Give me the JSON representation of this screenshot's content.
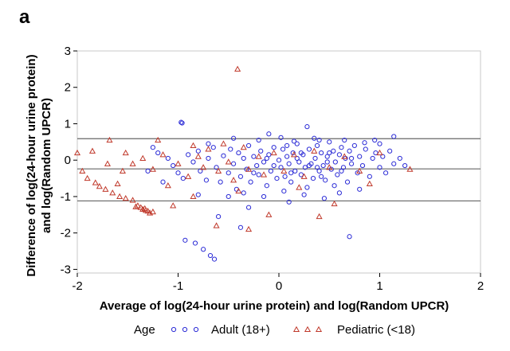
{
  "panel_label": "a",
  "chart_data": {
    "type": "scatter",
    "title": "",
    "xlabel": "Average of log(24-hour urine protein) and log(Random UPCR)",
    "ylabel_line1": "Difference of log(24-hour urine protein)",
    "ylabel_line2": "and log(Random UPCR)",
    "xlim": [
      -2,
      2
    ],
    "ylim": [
      -3.1,
      3.0
    ],
    "xticks": [
      -2,
      -1,
      0,
      1,
      2
    ],
    "yticks": [
      -3,
      -2,
      -1,
      0,
      1,
      2,
      3
    ],
    "xtick_labels": [
      "-2",
      "-1",
      "0",
      "1",
      "2"
    ],
    "ytick_labels": [
      "-3",
      "-2",
      "-1",
      "0",
      "1",
      "2",
      "3"
    ],
    "grid": false,
    "reference_lines": [
      0.59,
      -0.24,
      -1.12
    ],
    "legend": {
      "placement": "bottom",
      "title": "Age",
      "entries": [
        "Adult (18+)",
        "Pediatric (<18)"
      ]
    },
    "colors": {
      "adult": "#2b2bd6",
      "pediatric": "#c0392b",
      "reference_line": "#666666",
      "frame": "#c8c8c8"
    },
    "series": [
      {
        "name": "Adult (18+)",
        "marker": "circle",
        "points": [
          [
            -0.96,
            1.02
          ],
          [
            -0.97,
            1.04
          ],
          [
            0.28,
            0.92
          ],
          [
            1.14,
            0.65
          ],
          [
            -0.93,
            -2.2
          ],
          [
            -0.83,
            -2.28
          ],
          [
            -0.75,
            -2.45
          ],
          [
            -0.68,
            -2.62
          ],
          [
            -0.64,
            -2.72
          ],
          [
            -0.38,
            -1.85
          ],
          [
            0.7,
            -2.1
          ],
          [
            -0.1,
            0.72
          ],
          [
            0.02,
            0.62
          ],
          [
            0.95,
            0.55
          ],
          [
            -1.2,
            0.2
          ],
          [
            -1.1,
            0.05
          ],
          [
            -1.05,
            -0.15
          ],
          [
            -1.0,
            -0.35
          ],
          [
            -0.95,
            -0.5
          ],
          [
            -0.9,
            0.15
          ],
          [
            -0.85,
            -0.05
          ],
          [
            -0.8,
            0.25
          ],
          [
            -0.78,
            -0.3
          ],
          [
            -0.72,
            -0.55
          ],
          [
            -0.7,
            0.05
          ],
          [
            -0.65,
            0.35
          ],
          [
            -0.62,
            -0.2
          ],
          [
            -0.58,
            -0.6
          ],
          [
            -0.55,
            0.12
          ],
          [
            -0.5,
            -0.35
          ],
          [
            -0.48,
            0.3
          ],
          [
            -0.45,
            -0.1
          ],
          [
            -0.42,
            -0.8
          ],
          [
            -0.4,
            0.2
          ],
          [
            -0.38,
            -0.45
          ],
          [
            -0.35,
            0.05
          ],
          [
            -0.32,
            -0.25
          ],
          [
            -0.3,
            0.4
          ],
          [
            -0.28,
            -0.6
          ],
          [
            -0.25,
            0.1
          ],
          [
            -0.22,
            -0.15
          ],
          [
            -0.2,
            -0.4
          ],
          [
            -0.18,
            0.25
          ],
          [
            -0.15,
            -0.05
          ],
          [
            -0.12,
            -0.7
          ],
          [
            -0.1,
            0.15
          ],
          [
            -0.08,
            -0.3
          ],
          [
            -0.05,
            0.35
          ],
          [
            -0.02,
            -0.5
          ],
          [
            0.0,
            0.0
          ],
          [
            0.02,
            -0.2
          ],
          [
            0.04,
            0.3
          ],
          [
            0.06,
            -0.45
          ],
          [
            0.08,
            0.1
          ],
          [
            0.1,
            -0.1
          ],
          [
            0.12,
            -0.6
          ],
          [
            0.14,
            0.2
          ],
          [
            0.16,
            -0.3
          ],
          [
            0.18,
            0.45
          ],
          [
            0.2,
            -0.05
          ],
          [
            0.22,
            -0.4
          ],
          [
            0.24,
            0.15
          ],
          [
            0.26,
            -0.2
          ],
          [
            0.28,
            -0.75
          ],
          [
            0.3,
            0.3
          ],
          [
            0.32,
            -0.1
          ],
          [
            0.34,
            -0.5
          ],
          [
            0.36,
            0.05
          ],
          [
            0.38,
            0.4
          ],
          [
            0.4,
            -0.3
          ],
          [
            0.42,
            0.2
          ],
          [
            0.44,
            -0.15
          ],
          [
            0.46,
            -0.55
          ],
          [
            0.48,
            0.1
          ],
          [
            0.5,
            0.5
          ],
          [
            0.52,
            -0.25
          ],
          [
            0.54,
            0.25
          ],
          [
            0.56,
            -0.05
          ],
          [
            0.58,
            -0.4
          ],
          [
            0.6,
            0.15
          ],
          [
            0.62,
            0.35
          ],
          [
            0.64,
            -0.2
          ],
          [
            0.66,
            0.05
          ],
          [
            0.68,
            -0.6
          ],
          [
            0.7,
            0.25
          ],
          [
            0.72,
            -0.1
          ],
          [
            0.75,
            0.4
          ],
          [
            0.78,
            -0.35
          ],
          [
            0.8,
            0.1
          ],
          [
            0.83,
            -0.15
          ],
          [
            0.86,
            0.3
          ],
          [
            0.9,
            -0.45
          ],
          [
            0.93,
            0.05
          ],
          [
            0.96,
            0.2
          ],
          [
            1.0,
            -0.2
          ],
          [
            1.03,
            0.1
          ],
          [
            1.06,
            -0.35
          ],
          [
            1.1,
            0.25
          ],
          [
            1.14,
            -0.1
          ],
          [
            1.2,
            0.05
          ],
          [
            1.25,
            -0.15
          ],
          [
            -0.6,
            -1.55
          ],
          [
            -0.3,
            -1.3
          ],
          [
            0.1,
            -1.15
          ],
          [
            0.45,
            -1.05
          ],
          [
            -0.5,
            -1.0
          ],
          [
            0.25,
            -0.95
          ],
          [
            0.6,
            -0.9
          ],
          [
            -0.8,
            -0.95
          ],
          [
            0.8,
            -0.8
          ],
          [
            -0.2,
            0.55
          ],
          [
            0.35,
            0.6
          ],
          [
            0.65,
            0.55
          ],
          [
            -0.45,
            0.6
          ],
          [
            0.15,
            0.52
          ],
          [
            0.85,
            0.48
          ],
          [
            -0.7,
            0.45
          ],
          [
            0.05,
            -0.85
          ],
          [
            -0.35,
            -0.9
          ],
          [
            0.55,
            -0.7
          ],
          [
            -0.15,
            -1.0
          ],
          [
            0.4,
            0.55
          ],
          [
            1.0,
            0.45
          ],
          [
            -1.3,
            -0.3
          ],
          [
            -1.15,
            -0.6
          ],
          [
            -1.25,
            0.35
          ],
          [
            0.3,
            -0.15
          ],
          [
            0.18,
            0.05
          ],
          [
            -0.05,
            -0.15
          ],
          [
            0.48,
            -0.05
          ],
          [
            0.22,
            0.2
          ],
          [
            0.62,
            -0.3
          ],
          [
            0.08,
            0.4
          ],
          [
            -0.25,
            -0.35
          ],
          [
            0.38,
            -0.2
          ],
          [
            0.5,
            0.2
          ],
          [
            0.72,
            0.05
          ],
          [
            0.12,
            -0.35
          ],
          [
            -0.12,
            0.05
          ],
          [
            0.42,
            -0.45
          ]
        ]
      },
      {
        "name": "Pediatric (<18)",
        "marker": "triangle",
        "points": [
          [
            -0.41,
            2.5
          ],
          [
            -2.0,
            0.2
          ],
          [
            -1.85,
            0.25
          ],
          [
            -1.68,
            0.55
          ],
          [
            -1.52,
            0.2
          ],
          [
            -1.2,
            0.55
          ],
          [
            -0.85,
            0.4
          ],
          [
            -1.7,
            -0.1
          ],
          [
            -1.55,
            -0.3
          ],
          [
            -1.45,
            -0.1
          ],
          [
            -1.35,
            0.05
          ],
          [
            -1.25,
            -0.25
          ],
          [
            -1.15,
            0.15
          ],
          [
            -1.0,
            -0.1
          ],
          [
            -0.9,
            -0.45
          ],
          [
            -0.8,
            0.1
          ],
          [
            -0.75,
            -0.2
          ],
          [
            -0.7,
            0.3
          ],
          [
            -0.6,
            -0.3
          ],
          [
            -0.55,
            0.45
          ],
          [
            -0.5,
            -0.05
          ],
          [
            -0.45,
            -0.55
          ],
          [
            -0.35,
            0.35
          ],
          [
            -0.3,
            -0.25
          ],
          [
            -0.2,
            0.1
          ],
          [
            -0.15,
            -0.4
          ],
          [
            -0.05,
            0.2
          ],
          [
            0.05,
            -0.3
          ],
          [
            0.15,
            0.15
          ],
          [
            0.25,
            -0.45
          ],
          [
            0.35,
            0.25
          ],
          [
            0.5,
            -0.2
          ],
          [
            0.65,
            0.1
          ],
          [
            0.8,
            -0.3
          ],
          [
            1.0,
            0.2
          ],
          [
            1.3,
            -0.25
          ],
          [
            -1.82,
            -0.62
          ],
          [
            -1.78,
            -0.72
          ],
          [
            -1.72,
            -0.8
          ],
          [
            -1.65,
            -0.9
          ],
          [
            -1.58,
            -1.0
          ],
          [
            -1.52,
            -1.05
          ],
          [
            -1.45,
            -1.1
          ],
          [
            -1.4,
            -1.25
          ],
          [
            -1.37,
            -1.3
          ],
          [
            -1.35,
            -1.35
          ],
          [
            -1.32,
            -1.38
          ],
          [
            -1.3,
            -1.4
          ],
          [
            -1.28,
            -1.45
          ],
          [
            -1.25,
            -1.42
          ],
          [
            -1.42,
            -1.28
          ],
          [
            -1.33,
            -1.33
          ],
          [
            -0.62,
            -1.8
          ],
          [
            -0.3,
            -1.9
          ],
          [
            -0.1,
            -1.5
          ],
          [
            0.4,
            -1.55
          ],
          [
            -1.05,
            -1.25
          ],
          [
            -0.85,
            -1.0
          ],
          [
            0.55,
            -1.2
          ],
          [
            -1.95,
            -0.3
          ],
          [
            -1.9,
            -0.5
          ],
          [
            -1.6,
            -0.65
          ],
          [
            -1.1,
            -0.7
          ],
          [
            -0.4,
            -0.85
          ],
          [
            0.2,
            -0.75
          ],
          [
            0.9,
            -0.65
          ]
        ]
      }
    ]
  }
}
